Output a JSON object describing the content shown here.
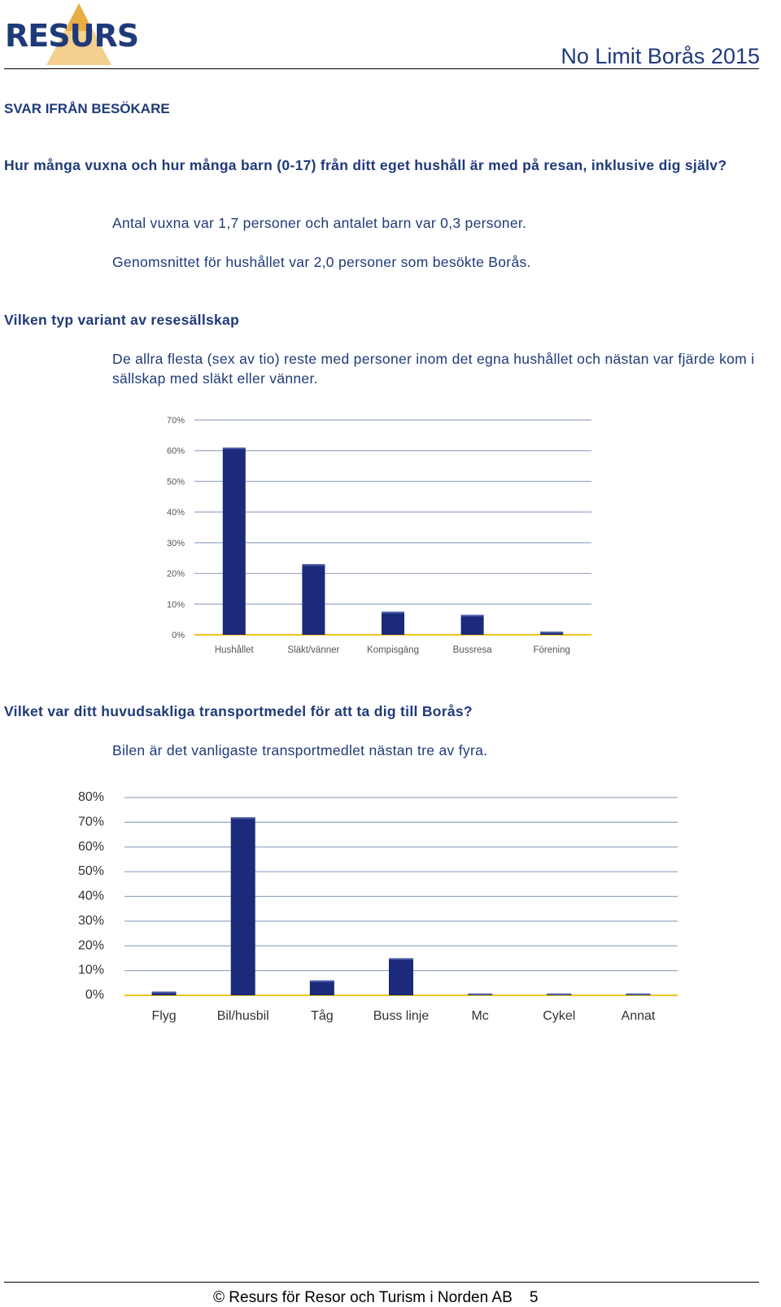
{
  "header": {
    "logo_text": "RESURS",
    "doc_title": "No Limit Borås 2015"
  },
  "section": {
    "label": "SVAR IFRÅN BESÖKARE"
  },
  "q1": {
    "question": "Hur många vuxna och hur många barn (0-17) från ditt eget hushåll är med på resan, inklusive dig själv?",
    "answer1": "Antal vuxna var 1,7 personer och antalet barn var 0,3 personer.",
    "answer2": "Genomsnittet för hushållet var 2,0 personer som besökte Borås."
  },
  "q2": {
    "question": "Vilken typ variant av resesällskap",
    "answer": "De allra flesta (sex av tio) reste med personer inom det egna hushållet och nästan var fjärde kom i sällskap med släkt eller vänner."
  },
  "q3": {
    "question": "Vilket var ditt huvudsakliga transportmedel för att ta dig till Borås?",
    "answer": "Bilen är det vanligaste transportmedlet nästan tre av fyra."
  },
  "chart_data": [
    {
      "type": "bar",
      "categories": [
        "Hushållet",
        "Släkt/vänner",
        "Kompisgäng",
        "Bussresa",
        "Förening"
      ],
      "values": [
        61,
        23,
        7.5,
        6.5,
        1
      ],
      "ylim": [
        0,
        70
      ],
      "yticks": [
        "0%",
        "10%",
        "20%",
        "30%",
        "40%",
        "50%",
        "60%",
        "70%"
      ],
      "grid": true,
      "bar_color": "#1b2a7a"
    },
    {
      "type": "bar",
      "categories": [
        "Flyg",
        "Bil/husbil",
        "Tåg",
        "Buss linje",
        "Mc",
        "Cykel",
        "Annat"
      ],
      "values": [
        1.5,
        72,
        6,
        15,
        0.7,
        0.7,
        0.7
      ],
      "ylim": [
        0,
        80
      ],
      "yticks": [
        "0%",
        "10%",
        "20%",
        "30%",
        "40%",
        "50%",
        "60%",
        "70%",
        "80%"
      ],
      "grid": true,
      "bar_color": "#1b2a7a"
    }
  ],
  "footer": {
    "text": "© Resurs för Resor och Turism i Norden AB",
    "page": "5"
  }
}
